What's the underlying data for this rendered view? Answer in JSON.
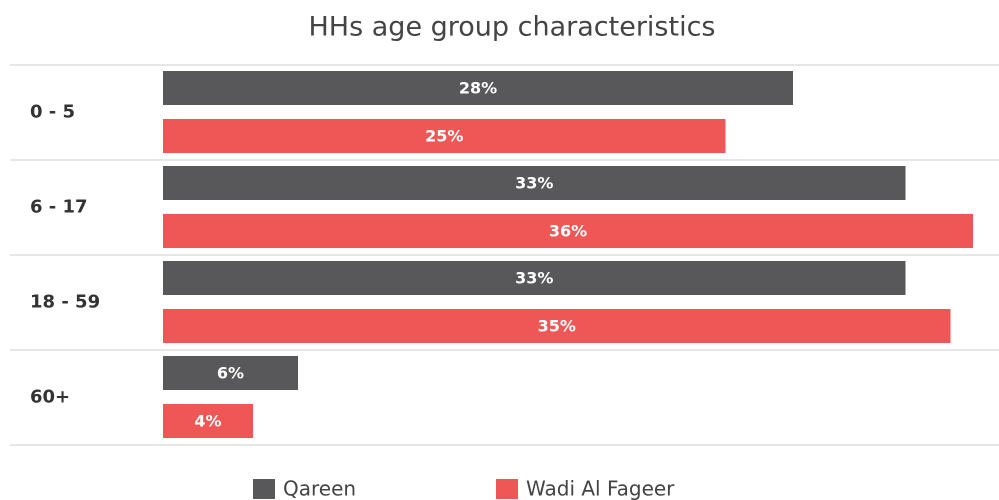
{
  "chart_data": {
    "type": "bar",
    "orientation": "horizontal",
    "title": "HHs age group characteristics",
    "categories": [
      "0 - 5",
      "6 - 17",
      "18 - 59",
      "60+"
    ],
    "series": [
      {
        "name": "Qareen",
        "color": "#58585a",
        "values": [
          28,
          33,
          33,
          6
        ],
        "value_labels": [
          "28%",
          "33%",
          "33%",
          "6%"
        ]
      },
      {
        "name": "Wadi Al Fageer",
        "color": "#ef5757",
        "values": [
          25,
          36,
          35,
          4
        ],
        "value_labels": [
          "25%",
          "36%",
          "35%",
          "4%"
        ]
      }
    ],
    "legend": "bottom"
  }
}
